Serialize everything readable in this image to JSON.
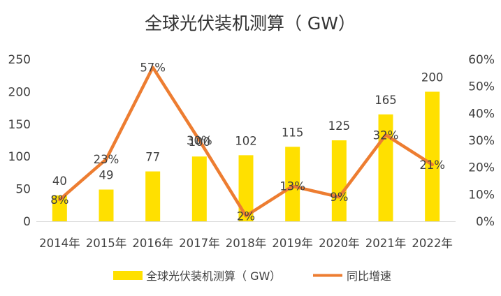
{
  "chart_data": {
    "type": "bar",
    "title": "全球光伏装机测算（ GW）",
    "categories": [
      "2014年",
      "2015年",
      "2016年",
      "2017年",
      "2018年",
      "2019年",
      "2020年",
      "2021年",
      "2022年"
    ],
    "series": [
      {
        "name": "全球光伏装机测算（ GW）",
        "type": "bar",
        "axis": "left",
        "color": "#FFE000",
        "values": [
          40,
          49,
          77,
          100,
          102,
          115,
          125,
          165,
          200
        ],
        "labels": [
          "40",
          "49",
          "77",
          "100",
          "102",
          "115",
          "125",
          "165",
          "200"
        ]
      },
      {
        "name": "同比增速",
        "type": "line",
        "axis": "right",
        "color": "#ED7D31",
        "values": [
          8,
          23,
          57,
          30,
          2,
          13,
          9,
          32,
          21
        ],
        "labels": [
          "8%",
          "23%",
          "57%",
          "30%",
          "2%",
          "13%",
          "9%",
          "32%",
          "21%"
        ]
      }
    ],
    "y_left": {
      "ylim": [
        0,
        250
      ],
      "ticks": [
        "0",
        "50",
        "100",
        "150",
        "200",
        "250"
      ]
    },
    "y_right": {
      "ylim": [
        0,
        60
      ],
      "unit": "%",
      "ticks": [
        "0%",
        "10%",
        "20%",
        "30%",
        "40%",
        "50%",
        "60%"
      ]
    },
    "grid": false,
    "legend": {
      "position": "bottom"
    }
  }
}
